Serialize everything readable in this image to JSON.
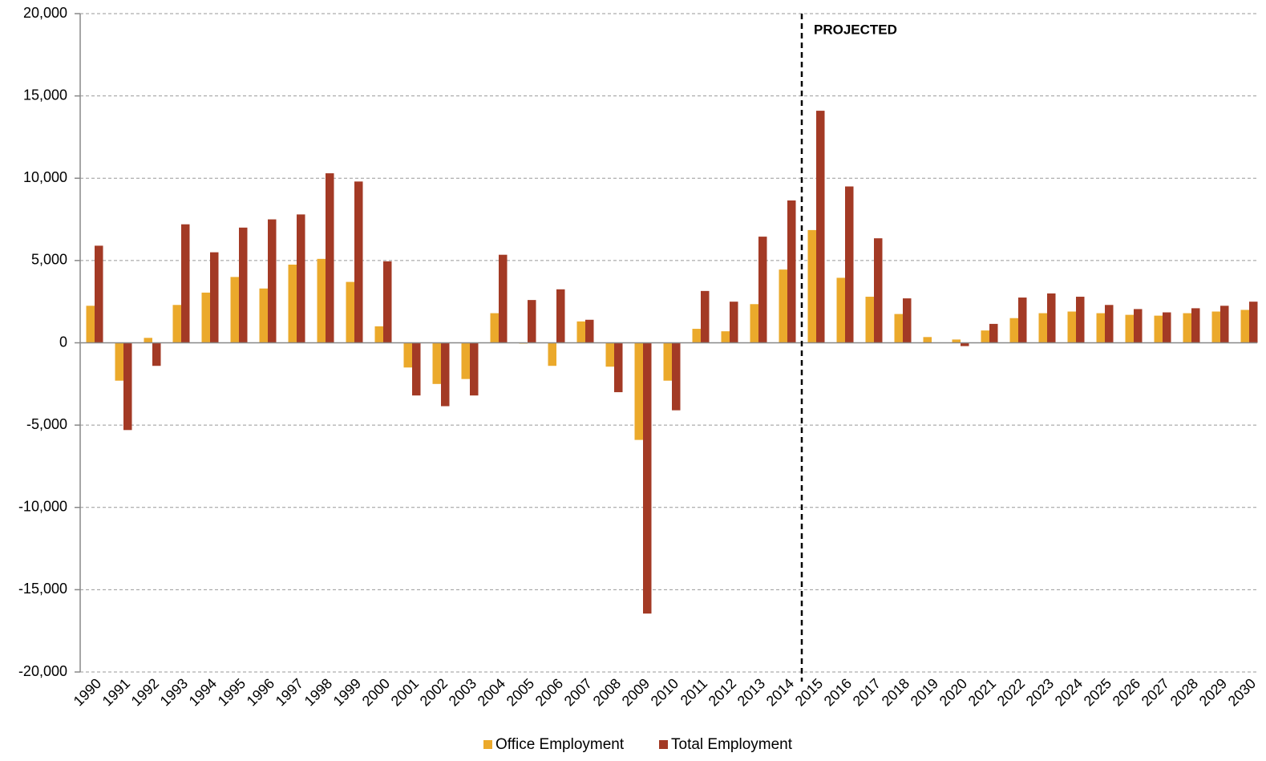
{
  "chart_data": {
    "type": "bar",
    "categories": [
      "1990",
      "1991",
      "1992",
      "1993",
      "1994",
      "1995",
      "1996",
      "1997",
      "1998",
      "1999",
      "2000",
      "2001",
      "2002",
      "2003",
      "2004",
      "2005",
      "2006",
      "2007",
      "2008",
      "2009",
      "2010",
      "2011",
      "2012",
      "2013",
      "2014",
      "2015",
      "2016",
      "2017",
      "2018",
      "2019",
      "2020",
      "2021",
      "2022",
      "2023",
      "2024",
      "2025",
      "2026",
      "2027",
      "2028",
      "2029",
      "2030"
    ],
    "series": [
      {
        "name": "Office Employment",
        "color": "#eba92b",
        "values": [
          2250,
          -2300,
          300,
          2300,
          3050,
          4000,
          3300,
          4750,
          5100,
          3700,
          1000,
          -1500,
          -2500,
          -2200,
          1800,
          -50,
          -1400,
          1300,
          -1450,
          -5900,
          -2300,
          850,
          700,
          2350,
          4450,
          6850,
          3950,
          2800,
          1750,
          350,
          200,
          750,
          1500,
          1800,
          1900,
          1800,
          1700,
          1650,
          1800,
          1900,
          2000
        ]
      },
      {
        "name": "Total Employment",
        "color": "#a33a25",
        "values": [
          5900,
          -5300,
          -1400,
          7200,
          5500,
          7000,
          7500,
          7800,
          10300,
          9800,
          4950,
          -3200,
          -3850,
          -3200,
          5350,
          2600,
          3250,
          1400,
          -3000,
          -16450,
          -4100,
          3150,
          2500,
          6450,
          8650,
          14100,
          9500,
          6350,
          2700,
          0,
          -200,
          1150,
          2750,
          3000,
          2800,
          2300,
          2050,
          1850,
          2100,
          2250,
          2500
        ]
      }
    ],
    "ylim": [
      -20000,
      20000
    ],
    "yticks": [
      {
        "value": -20000,
        "label": "-20,000"
      },
      {
        "value": -15000,
        "label": "-15,000"
      },
      {
        "value": -10000,
        "label": "-10,000"
      },
      {
        "value": -5000,
        "label": "-5,000"
      },
      0,
      {
        "value": 5000,
        "label": "5,000"
      },
      {
        "value": 10000,
        "label": "10,000"
      },
      {
        "value": 15000,
        "label": "15,000"
      },
      {
        "value": 20000,
        "label": "20,000"
      }
    ],
    "grid": true,
    "legend": "bottom",
    "annotations": [
      {
        "text": "PROJECTED",
        "x": "2015"
      }
    ]
  }
}
